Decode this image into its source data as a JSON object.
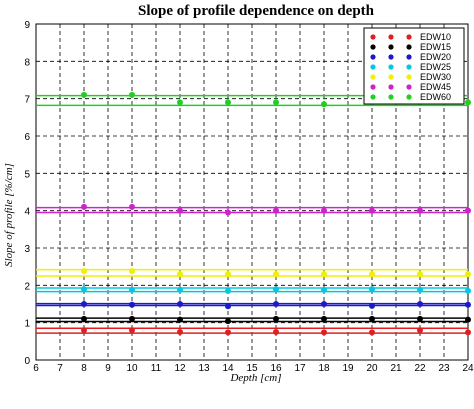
{
  "chart_data": {
    "type": "scatter",
    "title": "Slope of profile dependence on depth",
    "xlabel": "Depth [cm]",
    "ylabel": "Slope of profile [%/cm]",
    "xlim": [
      6,
      24
    ],
    "ylim": [
      0,
      9
    ],
    "x_ticks": [
      6,
      7,
      8,
      9,
      10,
      11,
      12,
      13,
      14,
      15,
      16,
      17,
      18,
      19,
      20,
      21,
      22,
      23,
      24
    ],
    "y_ticks": [
      0,
      1,
      2,
      3,
      4,
      5,
      6,
      7,
      8,
      9
    ],
    "grid": true,
    "legend_position": "top-right",
    "x": [
      8,
      10,
      12,
      14,
      16,
      18,
      20,
      22,
      24
    ],
    "series": [
      {
        "name": "EDW10",
        "color": "#e02020",
        "values": [
          0.8,
          0.8,
          0.75,
          0.74,
          0.75,
          0.74,
          0.74,
          0.8,
          0.74
        ],
        "band": [
          0.72,
          0.85
        ]
      },
      {
        "name": "EDW15",
        "color": "#000000",
        "values": [
          1.1,
          1.1,
          1.08,
          1.04,
          1.1,
          1.1,
          1.1,
          1.1,
          1.08
        ],
        "band": [
          1.03,
          1.12
        ]
      },
      {
        "name": "EDW20",
        "color": "#1a1acc",
        "values": [
          1.5,
          1.48,
          1.5,
          1.44,
          1.5,
          1.5,
          1.45,
          1.5,
          1.48
        ],
        "band": [
          1.46,
          1.51
        ]
      },
      {
        "name": "EDW25",
        "color": "#00c8e0",
        "values": [
          1.9,
          1.88,
          1.88,
          1.85,
          1.9,
          1.88,
          1.9,
          1.88,
          1.85
        ],
        "band": [
          1.83,
          1.93
        ]
      },
      {
        "name": "EDW30",
        "color": "#f0f000",
        "values": [
          2.38,
          2.38,
          2.3,
          2.3,
          2.3,
          2.3,
          2.3,
          2.3,
          2.3
        ],
        "band": [
          2.25,
          2.42
        ]
      },
      {
        "name": "EDW45",
        "color": "#d020d0",
        "values": [
          4.1,
          4.1,
          4.0,
          3.95,
          4.0,
          4.0,
          4.0,
          4.0,
          4.0
        ],
        "band": [
          3.95,
          4.08
        ]
      },
      {
        "name": "EDW60",
        "color": "#20d020",
        "values": [
          7.1,
          7.1,
          6.9,
          6.9,
          6.9,
          6.85,
          6.9,
          6.9,
          6.9
        ],
        "band": [
          6.82,
          7.08
        ]
      }
    ]
  }
}
